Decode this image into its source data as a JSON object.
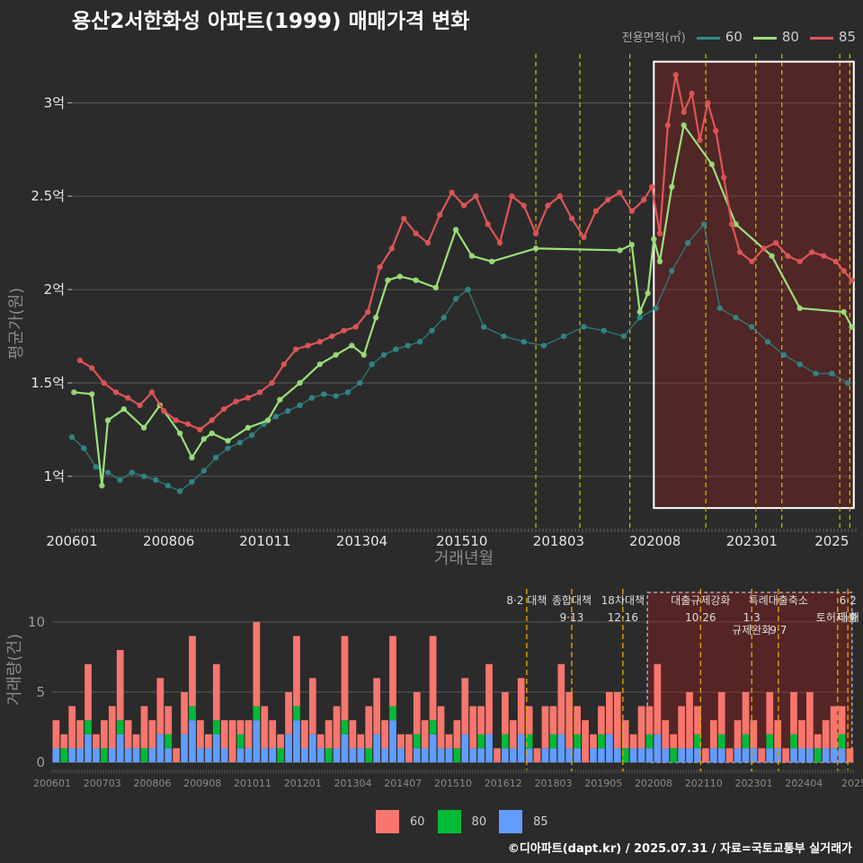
{
  "title": "용산2서한화성 아파트(1999) 매매가격 변화",
  "footer": "©디아파트(dapt.kr) / 2025.07.31 / 자료=국토교통부 실거래가",
  "legend": {
    "title": "전용면적(㎡)",
    "items": [
      {
        "label": "60",
        "color": "#2e8b8b"
      },
      {
        "label": "80",
        "color": "#9be07a"
      },
      {
        "label": "85",
        "color": "#e05555"
      }
    ]
  },
  "volume_legend": [
    {
      "label": "60",
      "color": "#f8766d"
    },
    {
      "label": "80",
      "color": "#00ba38"
    },
    {
      "label": "85",
      "color": "#619cff"
    }
  ],
  "chart_data": [
    {
      "type": "line",
      "title": "용산2서한화성 아파트(1999) 매매가격 변화",
      "xlabel": "거래년월",
      "ylabel": "평균가(원)",
      "x_tick_labels": [
        "200601",
        "200806",
        "201011",
        "201304",
        "201510",
        "201803",
        "202008",
        "202301",
        "2025"
      ],
      "x_tick_values": [
        2006.0,
        2008.42,
        2010.83,
        2013.25,
        2015.75,
        2018.17,
        2020.58,
        2023.0,
        2025.0
      ],
      "xlim": [
        2006.0,
        2025.6
      ],
      "ylim": [
        0.72,
        3.3
      ],
      "y_ticks": [
        1.0,
        1.5,
        2.0,
        2.5,
        3.0
      ],
      "y_tick_labels": [
        "1억",
        "1.5억",
        "2억",
        "2.5억",
        "3억"
      ],
      "unit": "억",
      "event_lines": [
        2017.6,
        2018.7,
        2019.95,
        2021.85,
        2023.1,
        2023.75,
        2025.2,
        2025.45
      ],
      "highlight_range": [
        2020.55,
        2025.55
      ],
      "series": [
        {
          "name": "60",
          "color": "#2e8b8b",
          "x": [
            2006.0,
            2006.3,
            2006.6,
            2006.9,
            2007.2,
            2007.5,
            2007.8,
            2008.1,
            2008.4,
            2008.7,
            2009.0,
            2009.3,
            2009.6,
            2009.9,
            2010.2,
            2010.5,
            2010.8,
            2011.1,
            2011.4,
            2011.7,
            2012.0,
            2012.3,
            2012.6,
            2012.9,
            2013.2,
            2013.5,
            2013.8,
            2014.1,
            2014.4,
            2014.7,
            2015.0,
            2015.3,
            2015.6,
            2015.9,
            2016.3,
            2016.8,
            2017.3,
            2017.8,
            2018.3,
            2018.8,
            2019.3,
            2019.8,
            2020.2,
            2020.6,
            2021.0,
            2021.4,
            2021.8,
            2022.2,
            2022.6,
            2023.0,
            2023.4,
            2023.8,
            2024.2,
            2024.6,
            2025.0,
            2025.4
          ],
          "values": [
            1.21,
            1.15,
            1.05,
            1.02,
            0.98,
            1.02,
            1.0,
            0.98,
            0.95,
            0.92,
            0.97,
            1.03,
            1.1,
            1.15,
            1.18,
            1.22,
            1.28,
            1.32,
            1.35,
            1.38,
            1.42,
            1.44,
            1.43,
            1.45,
            1.5,
            1.6,
            1.65,
            1.68,
            1.7,
            1.72,
            1.78,
            1.85,
            1.95,
            2.0,
            1.8,
            1.75,
            1.72,
            1.7,
            1.75,
            1.8,
            1.78,
            1.75,
            1.85,
            1.9,
            2.1,
            2.25,
            2.35,
            1.9,
            1.85,
            1.8,
            1.72,
            1.65,
            1.6,
            1.55,
            1.55,
            1.5
          ]
        },
        {
          "name": "80",
          "color": "#9be07a",
          "x": [
            2006.05,
            2006.5,
            2006.75,
            2006.9,
            2007.3,
            2007.8,
            2008.2,
            2008.7,
            2009.0,
            2009.3,
            2009.5,
            2009.9,
            2010.4,
            2010.9,
            2011.2,
            2011.7,
            2012.2,
            2012.6,
            2013.0,
            2013.3,
            2013.6,
            2013.9,
            2014.2,
            2014.6,
            2015.1,
            2015.6,
            2016.0,
            2016.5,
            2017.6,
            2019.7,
            2020.0,
            2020.2,
            2020.4,
            2020.55,
            2020.7,
            2021.0,
            2021.3,
            2022.0,
            2022.6,
            2023.5,
            2024.2,
            2025.3,
            2025.5
          ],
          "values": [
            1.45,
            1.44,
            0.95,
            1.3,
            1.36,
            1.26,
            1.38,
            1.23,
            1.1,
            1.2,
            1.23,
            1.19,
            1.26,
            1.3,
            1.41,
            1.5,
            1.6,
            1.65,
            1.7,
            1.65,
            1.85,
            2.05,
            2.07,
            2.05,
            2.01,
            2.32,
            2.18,
            2.15,
            2.22,
            2.21,
            2.24,
            1.88,
            1.98,
            2.27,
            2.15,
            2.55,
            2.88,
            2.67,
            2.35,
            2.18,
            1.9,
            1.88,
            1.8
          ]
        },
        {
          "name": "85",
          "color": "#e05555",
          "x": [
            2006.2,
            2006.5,
            2006.8,
            2007.1,
            2007.4,
            2007.7,
            2008.0,
            2008.3,
            2008.6,
            2008.9,
            2009.2,
            2009.5,
            2009.8,
            2010.1,
            2010.4,
            2010.7,
            2011.0,
            2011.3,
            2011.6,
            2011.9,
            2012.2,
            2012.5,
            2012.8,
            2013.1,
            2013.4,
            2013.7,
            2014.0,
            2014.3,
            2014.6,
            2014.9,
            2015.2,
            2015.5,
            2015.8,
            2016.1,
            2016.4,
            2016.7,
            2017.0,
            2017.3,
            2017.6,
            2017.9,
            2018.2,
            2018.5,
            2018.8,
            2019.1,
            2019.4,
            2019.7,
            2020.0,
            2020.3,
            2020.5,
            2020.7,
            2020.9,
            2021.1,
            2021.3,
            2021.5,
            2021.7,
            2021.9,
            2022.1,
            2022.3,
            2022.5,
            2022.7,
            2023.0,
            2023.3,
            2023.6,
            2023.9,
            2024.2,
            2024.5,
            2024.8,
            2025.1,
            2025.3,
            2025.5
          ],
          "values": [
            1.62,
            1.58,
            1.5,
            1.45,
            1.42,
            1.38,
            1.45,
            1.35,
            1.3,
            1.28,
            1.25,
            1.3,
            1.36,
            1.4,
            1.42,
            1.45,
            1.5,
            1.6,
            1.68,
            1.7,
            1.72,
            1.75,
            1.78,
            1.8,
            1.88,
            2.12,
            2.22,
            2.38,
            2.3,
            2.25,
            2.4,
            2.52,
            2.45,
            2.5,
            2.35,
            2.25,
            2.5,
            2.45,
            2.3,
            2.45,
            2.5,
            2.38,
            2.28,
            2.42,
            2.48,
            2.52,
            2.42,
            2.48,
            2.55,
            2.3,
            2.88,
            3.15,
            2.95,
            3.05,
            2.8,
            3.0,
            2.85,
            2.6,
            2.35,
            2.2,
            2.15,
            2.22,
            2.25,
            2.18,
            2.15,
            2.2,
            2.18,
            2.15,
            2.1,
            2.05
          ]
        }
      ]
    },
    {
      "type": "bar",
      "title": "",
      "xlabel": "",
      "ylabel": "거래량(건)",
      "stacked": true,
      "x_tick_labels": [
        "200601",
        "200703",
        "200806",
        "200908",
        "201011",
        "201201",
        "201304",
        "201407",
        "201510",
        "201612",
        "201803",
        "201905",
        "202008",
        "202110",
        "202301",
        "202404",
        "2025"
      ],
      "ylim": [
        0,
        13
      ],
      "y_ticks": [
        0,
        5,
        10
      ],
      "events": [
        {
          "label": "8·2 대책",
          "x": 2017.6
        },
        {
          "label": "9·13",
          "x": 2018.7
        },
        {
          "label": "종합대책",
          "x": 2018.7
        },
        {
          "label": "12·16",
          "x": 2019.95
        },
        {
          "label": "18차대책",
          "x": 2019.95
        },
        {
          "label": "10·26",
          "x": 2021.85
        },
        {
          "label": "대출규제강화",
          "x": 2021.85
        },
        {
          "label": "1·3",
          "x": 2023.1
        },
        {
          "label": "규제완화",
          "x": 2023.1
        },
        {
          "label": "9·7",
          "x": 2023.75
        },
        {
          "label": "특례대출축소",
          "x": 2023.75
        },
        {
          "label": "토허제 해",
          "x": 2025.2
        },
        {
          "label": "6·2",
          "x": 2025.45
        },
        {
          "label": "대출",
          "x": 2025.45
        }
      ],
      "highlight_range": [
        2020.55,
        2025.55
      ],
      "series": [
        {
          "name": "60",
          "color": "#f8766d",
          "values": [
            2,
            1,
            3,
            2,
            4,
            1,
            2,
            3,
            5,
            2,
            1,
            3,
            2,
            4,
            2,
            1,
            3,
            5,
            2,
            1,
            4,
            2,
            3,
            1,
            2,
            6,
            3,
            2,
            1,
            3,
            5,
            2,
            4,
            1,
            2,
            3,
            6,
            2,
            1,
            3,
            4,
            2,
            5,
            1,
            2,
            3,
            2,
            6,
            3,
            1,
            2,
            4,
            3,
            2,
            5,
            1,
            3,
            2,
            4,
            2,
            1,
            3,
            2,
            5,
            4,
            2,
            3,
            1,
            2,
            3,
            4,
            2,
            1,
            3,
            2,
            5,
            2,
            1,
            3,
            4,
            2,
            1,
            2,
            3,
            1,
            2,
            3,
            2,
            1,
            3,
            2,
            1,
            3,
            2,
            4,
            1,
            2,
            3,
            2,
            1
          ]
        },
        {
          "name": "80",
          "color": "#00ba38",
          "values": [
            0,
            1,
            0,
            0,
            1,
            0,
            1,
            0,
            1,
            0,
            0,
            1,
            0,
            0,
            1,
            0,
            0,
            1,
            0,
            0,
            1,
            0,
            0,
            1,
            0,
            1,
            0,
            0,
            1,
            0,
            1,
            0,
            0,
            0,
            1,
            0,
            1,
            0,
            0,
            1,
            0,
            0,
            1,
            0,
            0,
            1,
            0,
            1,
            0,
            0,
            1,
            0,
            0,
            1,
            0,
            0,
            1,
            0,
            0,
            1,
            0,
            0,
            1,
            0,
            0,
            1,
            0,
            0,
            1,
            0,
            0,
            1,
            0,
            0,
            1,
            0,
            0,
            1,
            0,
            0,
            1,
            0,
            0,
            1,
            0,
            0,
            1,
            0,
            0,
            1,
            0,
            0,
            1,
            0,
            0,
            1,
            0,
            0,
            1,
            0
          ]
        },
        {
          "name": "85",
          "color": "#619cff",
          "values": [
            1,
            0,
            1,
            1,
            2,
            1,
            0,
            1,
            2,
            1,
            1,
            0,
            1,
            2,
            1,
            0,
            2,
            3,
            1,
            1,
            2,
            1,
            0,
            1,
            1,
            3,
            1,
            1,
            0,
            2,
            3,
            1,
            2,
            1,
            0,
            1,
            2,
            1,
            1,
            0,
            2,
            1,
            3,
            1,
            0,
            1,
            1,
            2,
            1,
            1,
            0,
            2,
            1,
            1,
            2,
            0,
            1,
            1,
            2,
            1,
            0,
            1,
            1,
            2,
            1,
            1,
            0,
            1,
            1,
            2,
            1,
            0,
            1,
            1,
            1,
            2,
            1,
            0,
            1,
            1,
            1,
            0,
            1,
            1,
            0,
            1,
            1,
            1,
            0,
            1,
            1,
            0,
            1,
            1,
            1,
            0,
            1,
            1,
            1,
            0
          ]
        }
      ]
    }
  ]
}
